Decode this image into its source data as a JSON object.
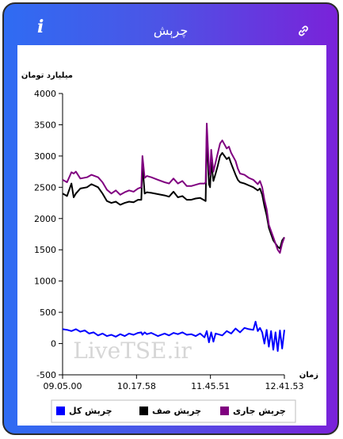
{
  "header": {
    "title": "چرېش",
    "info_icon": "info-icon",
    "link_icon": "link-icon"
  },
  "colors": {
    "total": "#0000ff",
    "queue": "#000000",
    "current": "#800080"
  },
  "watermark": "LiveTSE.ir",
  "chart_data": {
    "type": "line",
    "title": "",
    "ylabel": "میلیارد تومان",
    "xlabel": "زمان",
    "ylim": [
      -500,
      4000
    ],
    "yticks": [
      -500,
      0,
      500,
      1000,
      1500,
      2000,
      2500,
      3000,
      3500,
      4000
    ],
    "xticks": [
      "09.05.00",
      "10.17.58",
      "11.45.51",
      "12.41.53"
    ],
    "grid": false,
    "legend_position": "bottom",
    "series": [
      {
        "name": "چرېش کل",
        "x": [
          0,
          0.01,
          0.02,
          0.04,
          0.05,
          0.06,
          0.08,
          0.11,
          0.13,
          0.16,
          0.18,
          0.2,
          0.22,
          0.24,
          0.26,
          0.28,
          0.3,
          0.32,
          0.34,
          0.355,
          0.36,
          0.37,
          0.38,
          0.4,
          0.43,
          0.46,
          0.48,
          0.5,
          0.52,
          0.54,
          0.56,
          0.58,
          0.6,
          0.62,
          0.64,
          0.645,
          0.65,
          0.66,
          0.665,
          0.67,
          0.68,
          0.69,
          0.7,
          0.71,
          0.72,
          0.74,
          0.75,
          0.76,
          0.78,
          0.79,
          0.8,
          0.82,
          0.84,
          0.86,
          0.88,
          0.89,
          0.9,
          0.91,
          0.92,
          0.93,
          0.94,
          0.95,
          0.96,
          0.97,
          0.98,
          0.99,
          1.0
        ],
        "values": [
          2620,
          2600,
          2580,
          2740,
          2720,
          2750,
          2640,
          2660,
          2700,
          2660,
          2580,
          2460,
          2400,
          2450,
          2380,
          2420,
          2450,
          2430,
          2480,
          2500,
          3000,
          2650,
          2680,
          2660,
          2620,
          2580,
          2560,
          2640,
          2560,
          2600,
          2520,
          2520,
          2540,
          2560,
          2560,
          2580,
          3520,
          2800,
          2700,
          3100,
          2750,
          2900,
          3050,
          3200,
          3250,
          3120,
          3150,
          3050,
          2920,
          2800,
          2720,
          2700,
          2650,
          2620,
          2550,
          2600,
          2500,
          2300,
          2150,
          1900,
          1800,
          1700,
          1600,
          1500,
          1450,
          1600,
          1700
        ]
      },
      {
        "name": "چرېش صف",
        "x": [
          0,
          0.01,
          0.02,
          0.04,
          0.05,
          0.06,
          0.08,
          0.11,
          0.13,
          0.16,
          0.18,
          0.2,
          0.22,
          0.24,
          0.26,
          0.28,
          0.3,
          0.32,
          0.34,
          0.355,
          0.36,
          0.37,
          0.38,
          0.4,
          0.43,
          0.46,
          0.48,
          0.5,
          0.52,
          0.54,
          0.56,
          0.58,
          0.6,
          0.62,
          0.64,
          0.645,
          0.65,
          0.66,
          0.665,
          0.67,
          0.68,
          0.69,
          0.7,
          0.71,
          0.72,
          0.74,
          0.75,
          0.76,
          0.78,
          0.79,
          0.8,
          0.82,
          0.84,
          0.86,
          0.88,
          0.89,
          0.9,
          0.91,
          0.92,
          0.93,
          0.94,
          0.95,
          0.96,
          0.97,
          0.98,
          0.99,
          1.0
        ],
        "values": [
          2400,
          2380,
          2360,
          2560,
          2340,
          2400,
          2480,
          2500,
          2550,
          2500,
          2400,
          2280,
          2250,
          2270,
          2220,
          2250,
          2270,
          2260,
          2300,
          2300,
          2870,
          2400,
          2420,
          2410,
          2390,
          2370,
          2350,
          2430,
          2340,
          2360,
          2300,
          2300,
          2320,
          2330,
          2290,
          2280,
          3350,
          2550,
          2500,
          2900,
          2600,
          2720,
          2850,
          3000,
          3050,
          2950,
          2980,
          2880,
          2700,
          2620,
          2580,
          2560,
          2530,
          2500,
          2450,
          2480,
          2380,
          2200,
          2050,
          1850,
          1750,
          1650,
          1600,
          1550,
          1520,
          1650,
          1700
        ]
      },
      {
        "name": "چرېش جاری",
        "x": [
          0,
          0.02,
          0.04,
          0.06,
          0.08,
          0.1,
          0.12,
          0.14,
          0.16,
          0.18,
          0.2,
          0.22,
          0.24,
          0.26,
          0.28,
          0.3,
          0.32,
          0.34,
          0.355,
          0.36,
          0.37,
          0.38,
          0.4,
          0.43,
          0.46,
          0.48,
          0.5,
          0.52,
          0.54,
          0.56,
          0.58,
          0.6,
          0.62,
          0.64,
          0.65,
          0.66,
          0.67,
          0.68,
          0.69,
          0.7,
          0.72,
          0.74,
          0.76,
          0.78,
          0.8,
          0.82,
          0.84,
          0.86,
          0.87,
          0.88,
          0.89,
          0.9,
          0.91,
          0.92,
          0.93,
          0.94,
          0.95,
          0.96,
          0.97,
          0.98,
          0.99,
          1.0
        ],
        "values": [
          230,
          220,
          200,
          230,
          190,
          210,
          160,
          180,
          130,
          160,
          120,
          140,
          110,
          150,
          120,
          160,
          140,
          170,
          180,
          140,
          180,
          150,
          170,
          120,
          160,
          130,
          170,
          150,
          180,
          140,
          150,
          120,
          160,
          100,
          200,
          20,
          180,
          30,
          160,
          150,
          130,
          200,
          160,
          240,
          180,
          250,
          230,
          220,
          350,
          200,
          250,
          180,
          0,
          220,
          -50,
          200,
          -100,
          180,
          -120,
          210,
          -80,
          220
        ]
      }
    ]
  }
}
